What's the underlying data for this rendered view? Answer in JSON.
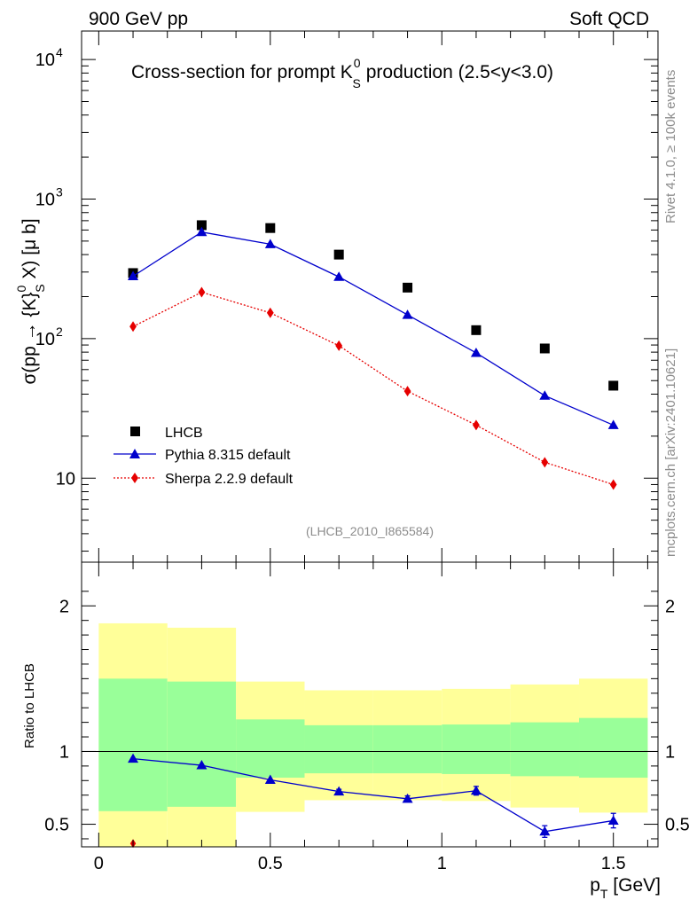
{
  "header": {
    "left": "900 GeV pp",
    "right": "Soft QCD"
  },
  "side": {
    "rivet": "Rivet 4.1.0, ≥ 100k events",
    "mcplots": "mcplots.cern.ch [arXiv:2401.10621]"
  },
  "analysis_label": "(LHCB_2010_I865584)",
  "colors": {
    "data": "#000000",
    "pythia": "#0000cc",
    "sherpa": "#e60000",
    "band_yellow": "#ffff99",
    "band_green": "#99ff99",
    "sidetext": "#8c8c8c"
  },
  "chart_data": [
    {
      "type": "scatter",
      "title": "Cross-section for prompt K_S^0 production (2.5<y<3.0)",
      "title_parts": {
        "pre": "Cross-section for prompt K",
        "sup": "0",
        "sub": "S",
        "post": " production (2.5<y<3.0)"
      },
      "ylabel": "σ(pp → {K}_S^0 X) [μ b]",
      "ylabel_parts": {
        "pre": "σ(pp → {K}",
        "sup": "0",
        "sub": "S",
        "post": " X) [μ b]"
      },
      "yscale": "log",
      "xlim": [
        -0.05,
        1.63
      ],
      "ylim": [
        2.5,
        16000
      ],
      "y_ticks": [
        {
          "value": 10000,
          "label": "10",
          "exp": "4"
        },
        {
          "value": 1000,
          "label": "10",
          "exp": "3"
        },
        {
          "value": 100,
          "label": "10",
          "exp": "2"
        },
        {
          "value": 10,
          "label": "10",
          "exp": ""
        }
      ],
      "legend_position": "middle-left",
      "series": [
        {
          "name": "LHCB",
          "marker": "square",
          "line": "none",
          "x": [
            0.1,
            0.3,
            0.5,
            0.7,
            0.9,
            1.1,
            1.3,
            1.5
          ],
          "y": [
            295,
            650,
            620,
            400,
            232,
            115,
            85,
            46
          ]
        },
        {
          "name": "Pythia 8.315 default",
          "marker": "triangle",
          "line": "solid",
          "x": [
            0.1,
            0.3,
            0.5,
            0.7,
            0.9,
            1.1,
            1.3,
            1.5
          ],
          "y": [
            280,
            580,
            475,
            277,
            148,
            79,
            39,
            24
          ]
        },
        {
          "name": "Sherpa 2.2.9 default",
          "marker": "diamond",
          "line": "dotted",
          "x": [
            0.1,
            0.3,
            0.5,
            0.7,
            0.9,
            1.1,
            1.3,
            1.5
          ],
          "y": [
            122,
            215,
            153,
            89,
            42,
            24,
            13,
            9
          ]
        }
      ]
    },
    {
      "type": "line",
      "ylabel": "Ratio to LHCB",
      "xlabel": "p_T [GeV]",
      "xlabel_parts": {
        "pre": "p",
        "sub": "T",
        "post": " [GeV]"
      },
      "xlim": [
        -0.05,
        1.63
      ],
      "ylim": [
        0.345,
        2.3
      ],
      "x_ticks": [
        {
          "value": 0,
          "label": "0"
        },
        {
          "value": 0.5,
          "label": "0.5"
        },
        {
          "value": 1,
          "label": "1"
        },
        {
          "value": 1.5,
          "label": "1.5"
        }
      ],
      "y_ticks": [
        {
          "value": 0.5,
          "label": "0.5"
        },
        {
          "value": 1,
          "label": "1"
        },
        {
          "value": 2,
          "label": "2"
        }
      ],
      "bands": [
        {
          "x": [
            0.0,
            0.2
          ],
          "yellow": [
            0.3,
            1.88
          ],
          "green": [
            0.59,
            1.5
          ]
        },
        {
          "x": [
            0.2,
            0.4
          ],
          "yellow": [
            0.3,
            1.85
          ],
          "green": [
            0.62,
            1.48
          ]
        },
        {
          "x": [
            0.4,
            0.6
          ],
          "yellow": [
            0.585,
            1.48
          ],
          "green": [
            0.82,
            1.22
          ]
        },
        {
          "x": [
            0.6,
            0.8
          ],
          "yellow": [
            0.665,
            1.42
          ],
          "green": [
            0.85,
            1.18
          ]
        },
        {
          "x": [
            0.8,
            1.0
          ],
          "yellow": [
            0.665,
            1.42
          ],
          "green": [
            0.85,
            1.18
          ]
        },
        {
          "x": [
            1.0,
            1.2
          ],
          "yellow": [
            0.66,
            1.43
          ],
          "green": [
            0.845,
            1.185
          ]
        },
        {
          "x": [
            1.2,
            1.4
          ],
          "yellow": [
            0.615,
            1.46
          ],
          "green": [
            0.83,
            1.2
          ]
        },
        {
          "x": [
            1.4,
            1.6
          ],
          "yellow": [
            0.58,
            1.5
          ],
          "green": [
            0.82,
            1.23
          ]
        }
      ],
      "series": [
        {
          "name": "Pythia 8.315 default",
          "marker": "triangle",
          "line": "solid",
          "x": [
            0.1,
            0.3,
            0.5,
            0.7,
            0.9,
            1.1,
            1.3,
            1.5
          ],
          "y": [
            0.95,
            0.905,
            0.805,
            0.725,
            0.675,
            0.73,
            0.45,
            0.525
          ],
          "err": [
            0.01,
            0.01,
            0.01,
            0.015,
            0.02,
            0.03,
            0.04,
            0.05
          ]
        },
        {
          "name": "Sherpa 2.2.9 default",
          "marker": "diamond",
          "line": "none",
          "x": [
            0.1
          ],
          "y": [
            0.368
          ]
        }
      ]
    }
  ]
}
